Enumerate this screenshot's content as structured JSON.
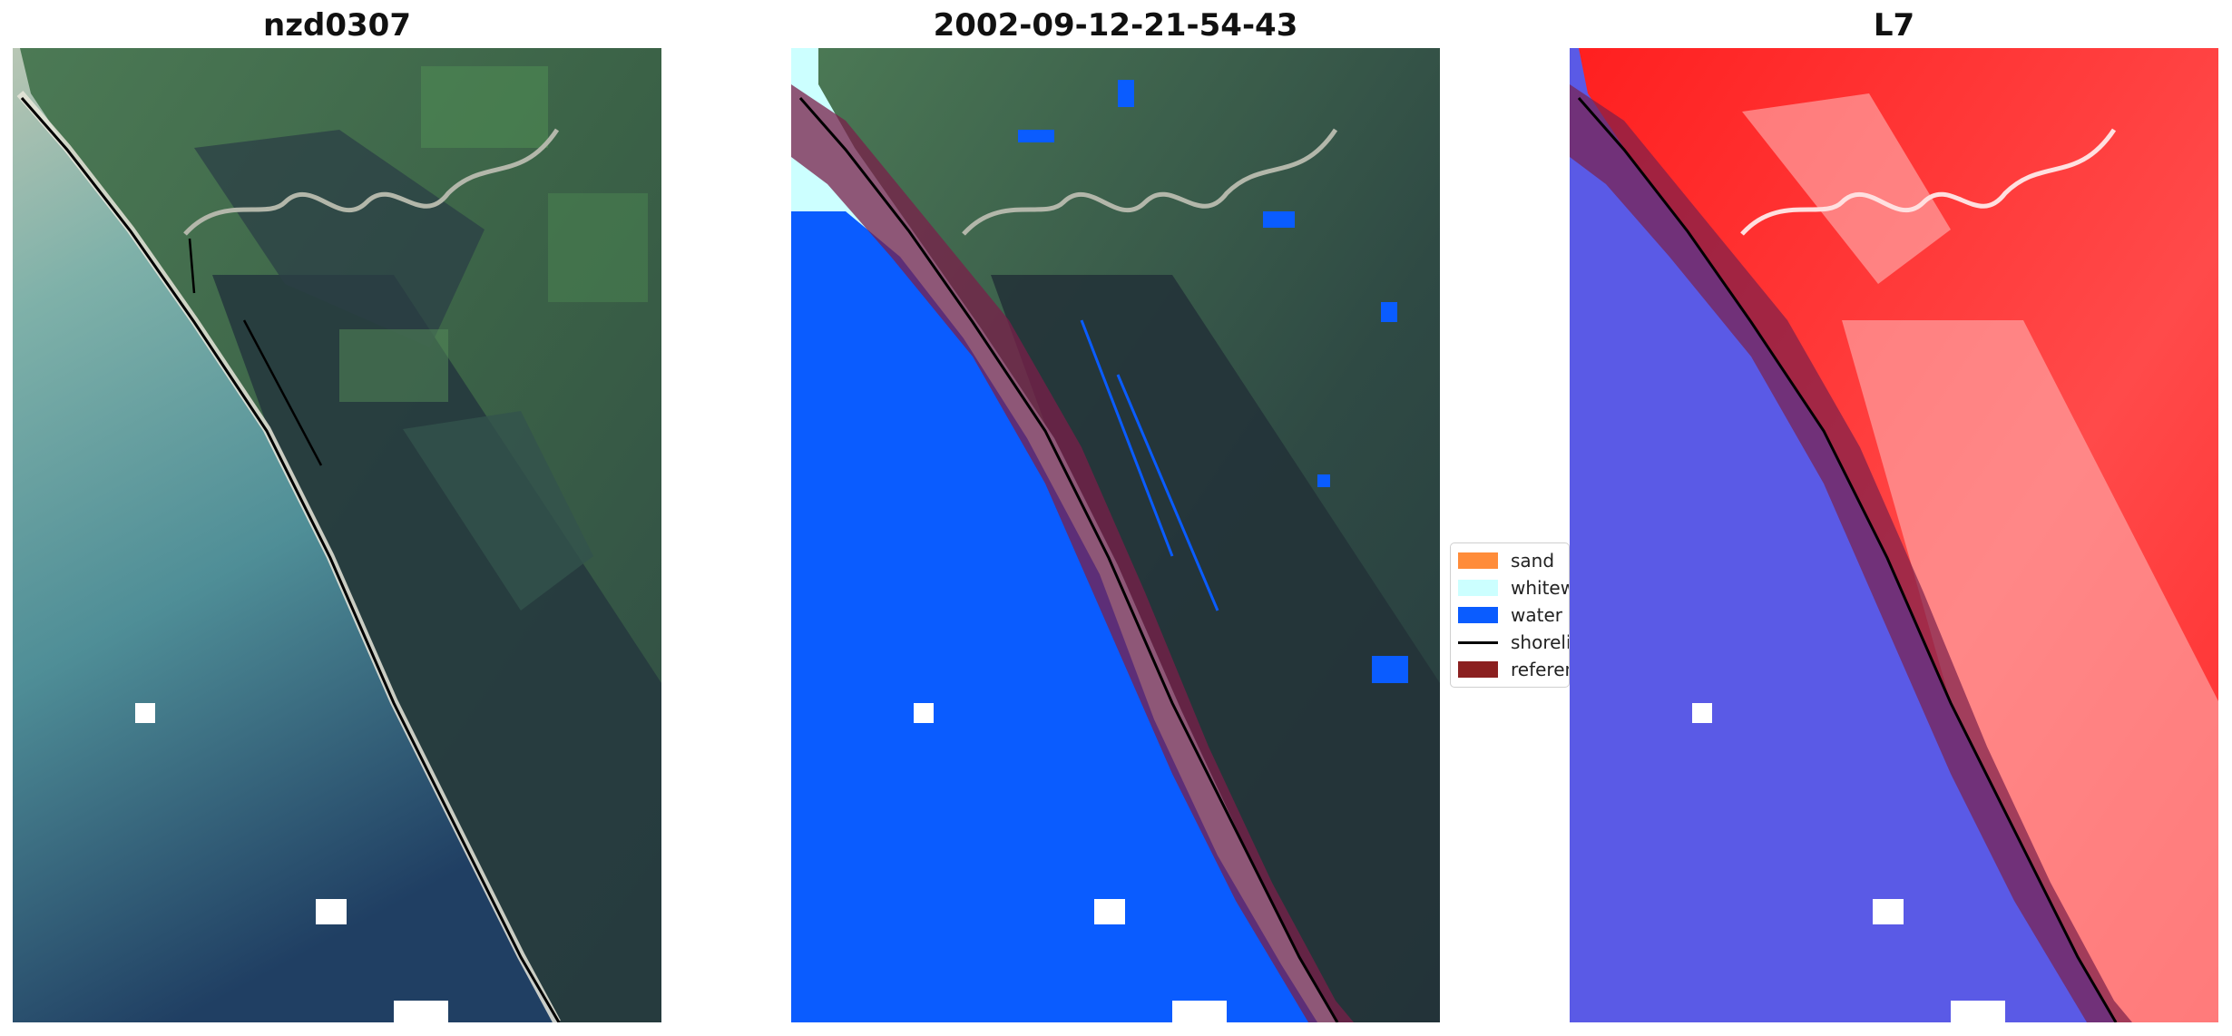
{
  "panels": [
    {
      "title": "nzd0307"
    },
    {
      "title": "2002-09-12-21-54-43"
    },
    {
      "title": "L7"
    }
  ],
  "legend": {
    "placement": "center",
    "items": [
      {
        "label": "sand",
        "color": "#ff8c3a",
        "kind": "patch"
      },
      {
        "label": "whitewater",
        "color": "#ccffff",
        "kind": "patch"
      },
      {
        "label": "water",
        "color": "#0a5cff",
        "kind": "patch"
      },
      {
        "label": "shoreline",
        "color": "#000000",
        "kind": "line"
      },
      {
        "label": "reference shoreline buffer",
        "color": "#8b2020",
        "kind": "patch"
      }
    ]
  },
  "colors": {
    "sea_shallow": "#5f9f9e",
    "sea_deep": "#24506e",
    "land_green": "#3f6a4b",
    "forest_dark": "#24383c",
    "classified_water": "#0a5cff",
    "whitewater": "#ccffff",
    "buffer": "#7a1f4a",
    "false_color_land": "#ff2020",
    "false_color_water": "#5050e0"
  }
}
